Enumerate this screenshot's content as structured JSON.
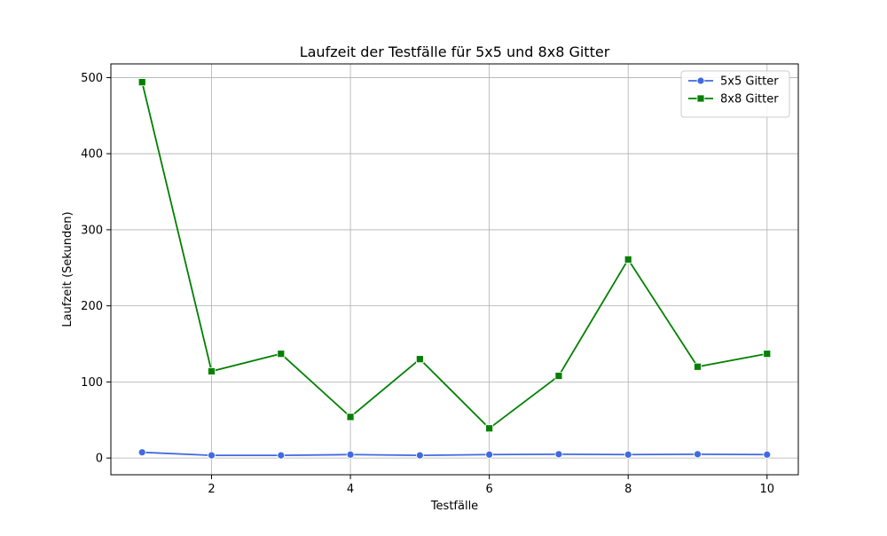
{
  "chart_data": {
    "type": "line",
    "title": "Laufzeit der Testfälle für 5x5 und 8x8 Gitter",
    "xlabel": "Testfälle",
    "ylabel": "Laufzeit (Sekunden)",
    "x": [
      1,
      2,
      3,
      4,
      5,
      6,
      7,
      8,
      9,
      10
    ],
    "xlim": [
      0.55,
      10.45
    ],
    "ylim": [
      -22,
      518
    ],
    "xticks": [
      2,
      4,
      6,
      8,
      10
    ],
    "yticks": [
      0,
      100,
      200,
      300,
      400,
      500
    ],
    "grid": true,
    "legend_position": "top-right",
    "series": [
      {
        "name": "5x5 Gitter",
        "color": "#4169e1",
        "marker": "circle",
        "values": [
          7.5,
          3.5,
          3.5,
          4.5,
          3.5,
          4.5,
          5.0,
          4.5,
          5.0,
          4.5
        ]
      },
      {
        "name": "8x8 Gitter",
        "color": "#008000",
        "marker": "square",
        "values": [
          494,
          114,
          137,
          54,
          130,
          39,
          108,
          261,
          120,
          137
        ]
      }
    ]
  }
}
